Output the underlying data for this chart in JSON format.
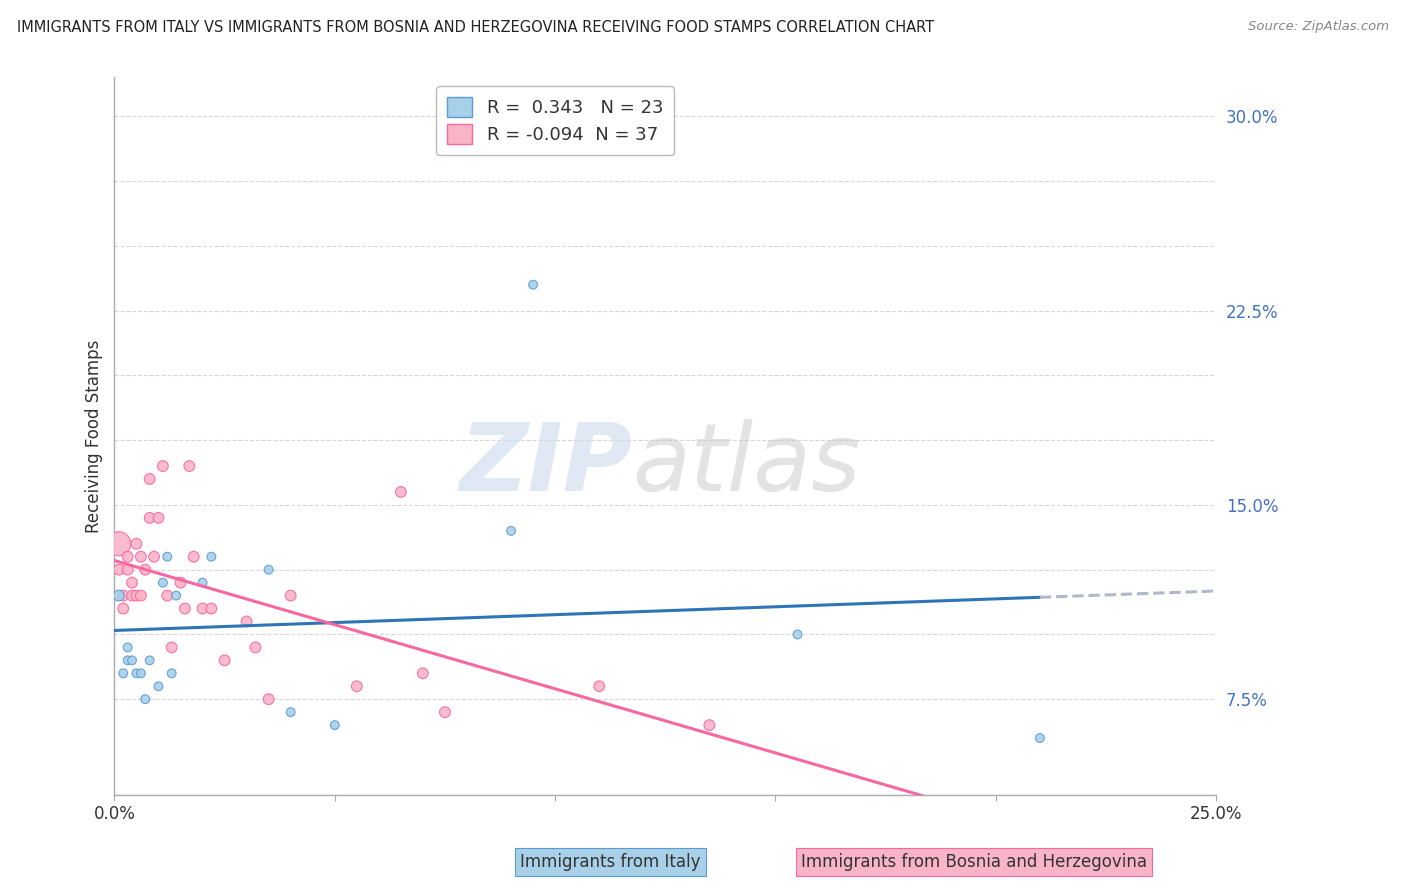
{
  "title": "IMMIGRANTS FROM ITALY VS IMMIGRANTS FROM BOSNIA AND HERZEGOVINA RECEIVING FOOD STAMPS CORRELATION CHART",
  "source": "Source: ZipAtlas.com",
  "ylabel": "Receiving Food Stamps",
  "xlabel_italy": "Immigrants from Italy",
  "xlabel_bosnia": "Immigrants from Bosnia and Herzegovina",
  "italy_R": 0.343,
  "italy_N": 23,
  "bosnia_R": -0.094,
  "bosnia_N": 37,
  "xlim": [
    0.0,
    0.25
  ],
  "ylim": [
    0.038,
    0.315
  ],
  "ytick_positions": [
    0.075,
    0.15,
    0.225,
    0.3
  ],
  "ytick_labels": [
    "7.5%",
    "15.0%",
    "22.5%",
    "30.0%"
  ],
  "ytick_minor": [
    0.075,
    0.1,
    0.125,
    0.15,
    0.175,
    0.2,
    0.225,
    0.25,
    0.275,
    0.3
  ],
  "xtick_positions": [
    0.0,
    0.05,
    0.1,
    0.15,
    0.2,
    0.25
  ],
  "xtick_labels": [
    "0.0%",
    "",
    "",
    "",
    "",
    "25.0%"
  ],
  "color_italy_fill": "#a8d0e8",
  "color_italy_edge": "#5b9bd5",
  "color_bosnia_fill": "#f9b4c8",
  "color_bosnia_edge": "#f768a1",
  "color_trendline_italy": "#2e75b6",
  "color_trendline_bosnia": "#f768a1",
  "color_trendline_ext": "#b0b8c8",
  "italy_x": [
    0.001,
    0.002,
    0.003,
    0.003,
    0.004,
    0.005,
    0.006,
    0.007,
    0.008,
    0.01,
    0.011,
    0.012,
    0.013,
    0.014,
    0.02,
    0.022,
    0.035,
    0.04,
    0.05,
    0.09,
    0.095,
    0.155,
    0.21
  ],
  "italy_y": [
    0.115,
    0.085,
    0.09,
    0.095,
    0.09,
    0.085,
    0.085,
    0.075,
    0.09,
    0.08,
    0.12,
    0.13,
    0.085,
    0.115,
    0.12,
    0.13,
    0.125,
    0.07,
    0.065,
    0.14,
    0.235,
    0.1,
    0.06
  ],
  "italy_size": [
    60,
    40,
    40,
    40,
    40,
    40,
    40,
    40,
    40,
    40,
    40,
    40,
    40,
    40,
    40,
    40,
    40,
    40,
    40,
    40,
    40,
    40,
    40
  ],
  "bosnia_x": [
    0.001,
    0.001,
    0.002,
    0.002,
    0.003,
    0.003,
    0.004,
    0.004,
    0.005,
    0.005,
    0.006,
    0.006,
    0.007,
    0.008,
    0.008,
    0.009,
    0.01,
    0.011,
    0.012,
    0.013,
    0.015,
    0.016,
    0.017,
    0.018,
    0.02,
    0.022,
    0.025,
    0.03,
    0.032,
    0.035,
    0.04,
    0.055,
    0.065,
    0.07,
    0.075,
    0.11,
    0.135
  ],
  "bosnia_y": [
    0.135,
    0.125,
    0.115,
    0.11,
    0.13,
    0.125,
    0.12,
    0.115,
    0.135,
    0.115,
    0.13,
    0.115,
    0.125,
    0.145,
    0.16,
    0.13,
    0.145,
    0.165,
    0.115,
    0.095,
    0.12,
    0.11,
    0.165,
    0.13,
    0.11,
    0.11,
    0.09,
    0.105,
    0.095,
    0.075,
    0.115,
    0.08,
    0.155,
    0.085,
    0.07,
    0.08,
    0.065
  ],
  "bosnia_size_first": 300,
  "bosnia_size_rest": 60,
  "background_color": "#ffffff",
  "grid_color": "#d8d8d8",
  "tick_color": "#aaaaaa",
  "label_color_blue": "#4472c4",
  "label_color_dark": "#333333"
}
